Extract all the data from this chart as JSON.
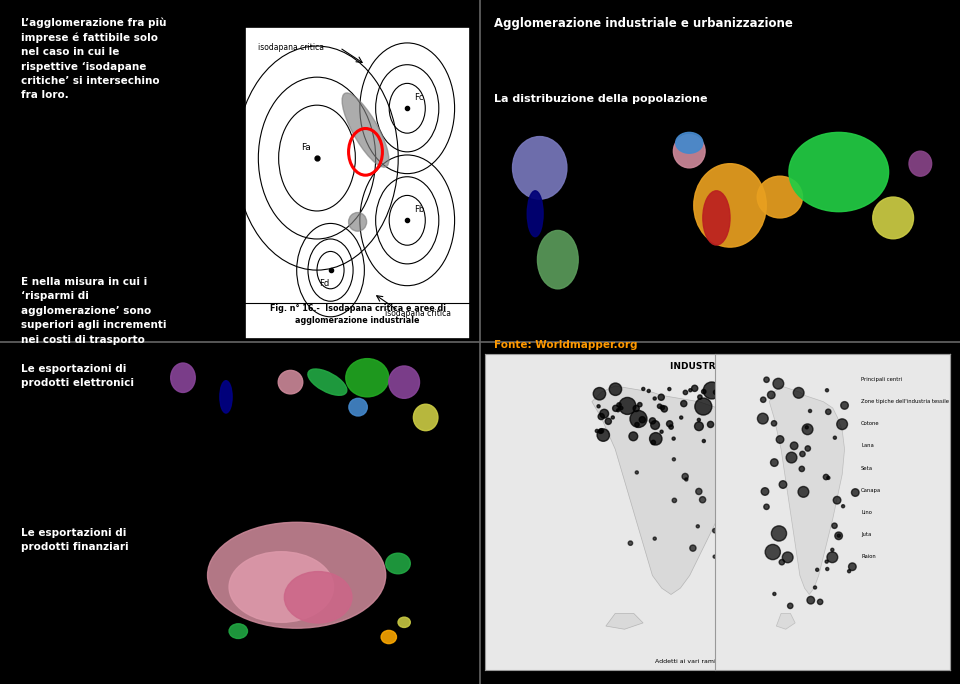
{
  "bg_color": "#000000",
  "text_color": "#ffffff",
  "orange_text": "#ff9900",
  "divider_color": "#666666",
  "cell_texts": {
    "top_left": {
      "para1": "L’agglomerazione fra più\nimprese é fattibile solo\nnel caso in cui le\nrispettive ‘isodapane\ncritiche’ si intersechino\nfra loro.",
      "para2": "E nella misura in cui i\n‘risparmi di\nagglomerazione’ sono\nsuperiori agli incrementi\nnei costi di trasporto"
    },
    "top_right": {
      "title": "Agglomerazione industriale e urbanizzazione",
      "subtitle": "La distribuzione della popolazione",
      "source": "Fonte: Worldmapper.org"
    },
    "bottom_left": {
      "label1": "Le esportazioni di\nprodotti elettronici",
      "label2": "Le esportazioni di\nprodotti finanziari"
    }
  }
}
